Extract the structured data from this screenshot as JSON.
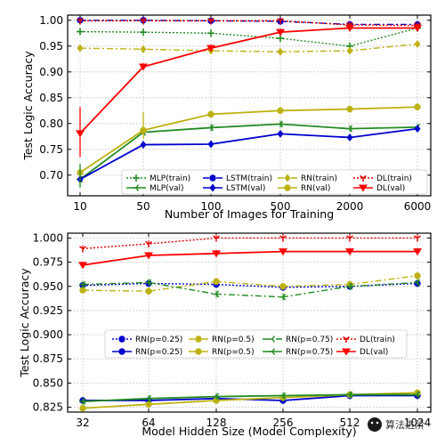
{
  "chart_data": [
    {
      "type": "line",
      "xlabel": "Number of Images for Training",
      "ylabel": "Test Logic Accuracy",
      "categories": [
        "10",
        "50",
        "100",
        "500",
        "2000",
        "6000"
      ],
      "ylim": [
        0.66,
        1.01
      ],
      "yticks": [
        "0.70",
        "0.75",
        "0.80",
        "0.85",
        "0.90",
        "0.95",
        "1.00"
      ],
      "grid": true,
      "legend_position": "bottom-right",
      "series": [
        {
          "name": "MLP(train)",
          "color": "#228b22",
          "style": "dotted",
          "marker": "plus",
          "values": [
            0.978,
            0.977,
            0.975,
            0.965,
            0.95,
            0.985
          ]
        },
        {
          "name": "MLP(val)",
          "color": "#228b22",
          "style": "solid",
          "marker": "tri-left",
          "values": [
            0.692,
            0.783,
            0.792,
            0.799,
            0.79,
            0.793
          ]
        },
        {
          "name": "LSTM(train)",
          "color": "#0000cd",
          "style": "dashdot",
          "marker": "circle",
          "values": [
            1.0,
            1.0,
            0.999,
            0.998,
            0.992,
            0.992
          ]
        },
        {
          "name": "LSTM(val)",
          "color": "#0000cd",
          "style": "solid",
          "marker": "diamond",
          "values": [
            0.692,
            0.759,
            0.76,
            0.78,
            0.773,
            0.79
          ]
        },
        {
          "name": "RN(train)",
          "color": "#bdb212",
          "style": "dashdot",
          "marker": "diamond",
          "values": [
            0.946,
            0.944,
            0.941,
            0.939,
            0.941,
            0.954
          ]
        },
        {
          "name": "RN(val)",
          "color": "#bdb212",
          "style": "solid",
          "marker": "circle",
          "values": [
            0.705,
            0.787,
            0.818,
            0.825,
            0.828,
            0.832
          ]
        },
        {
          "name": "DL(train)",
          "color": "#e00000",
          "style": "dotted",
          "marker": "tri-down",
          "values": [
            0.999,
            0.999,
            0.999,
            0.999,
            0.991,
            0.99
          ]
        },
        {
          "name": "DL(val)",
          "color": "#ff0000",
          "style": "solid",
          "marker": "triangle-down",
          "values": [
            0.781,
            0.91,
            0.946,
            0.977,
            0.985,
            0.985
          ]
        }
      ]
    },
    {
      "type": "line",
      "xlabel": "Model Hidden Size (Model Complexity)",
      "ylabel": "Test Logic Accuracy",
      "categories": [
        "32",
        "64",
        "128",
        "256",
        "512",
        "1024"
      ],
      "ylim": [
        0.82,
        1.005
      ],
      "yticks": [
        "0.825",
        "0.850",
        "0.875",
        "0.900",
        "0.925",
        "0.950",
        "0.975",
        "1.000"
      ],
      "grid": true,
      "legend_position": "center",
      "series": [
        {
          "name": "RN(p=0.25)",
          "color": "#0000cd",
          "style": "dotted",
          "marker": "circle",
          "values": [
            0.951,
            0.953,
            0.952,
            0.949,
            0.95,
            0.953
          ]
        },
        {
          "name": "RN(p=0.25)",
          "color": "#0000cd",
          "style": "solid",
          "marker": "circle",
          "values": [
            0.832,
            0.832,
            0.834,
            0.832,
            0.837,
            0.837
          ]
        },
        {
          "name": "RN(p=0.5)",
          "color": "#bdb212",
          "style": "dashdot",
          "marker": "circle",
          "values": [
            0.946,
            0.945,
            0.955,
            0.95,
            0.952,
            0.961
          ]
        },
        {
          "name": "RN(p=0.5)",
          "color": "#bdb212",
          "style": "solid",
          "marker": "circle",
          "values": [
            0.824,
            0.828,
            0.832,
            0.835,
            0.838,
            0.84
          ]
        },
        {
          "name": "RN(p=0.75)",
          "color": "#228b22",
          "style": "dashdot",
          "marker": "tri-left",
          "values": [
            0.952,
            0.954,
            0.942,
            0.939,
            0.95,
            0.954
          ]
        },
        {
          "name": "RN(p=0.75)",
          "color": "#228b22",
          "style": "solid",
          "marker": "tri-left",
          "values": [
            0.831,
            0.834,
            0.836,
            0.837,
            0.838,
            0.838
          ]
        },
        {
          "name": "DL(train)",
          "color": "#e00000",
          "style": "dotted",
          "marker": "tri-down",
          "values": [
            0.989,
            0.994,
            1.0,
            1.0,
            1.0,
            1.0
          ]
        },
        {
          "name": "DL(val)",
          "color": "#ff0000",
          "style": "solid",
          "marker": "triangle-down",
          "values": [
            0.972,
            0.982,
            0.984,
            0.986,
            0.986,
            0.986
          ]
        }
      ]
    }
  ],
  "watermark": {
    "text": "算法进阶"
  }
}
